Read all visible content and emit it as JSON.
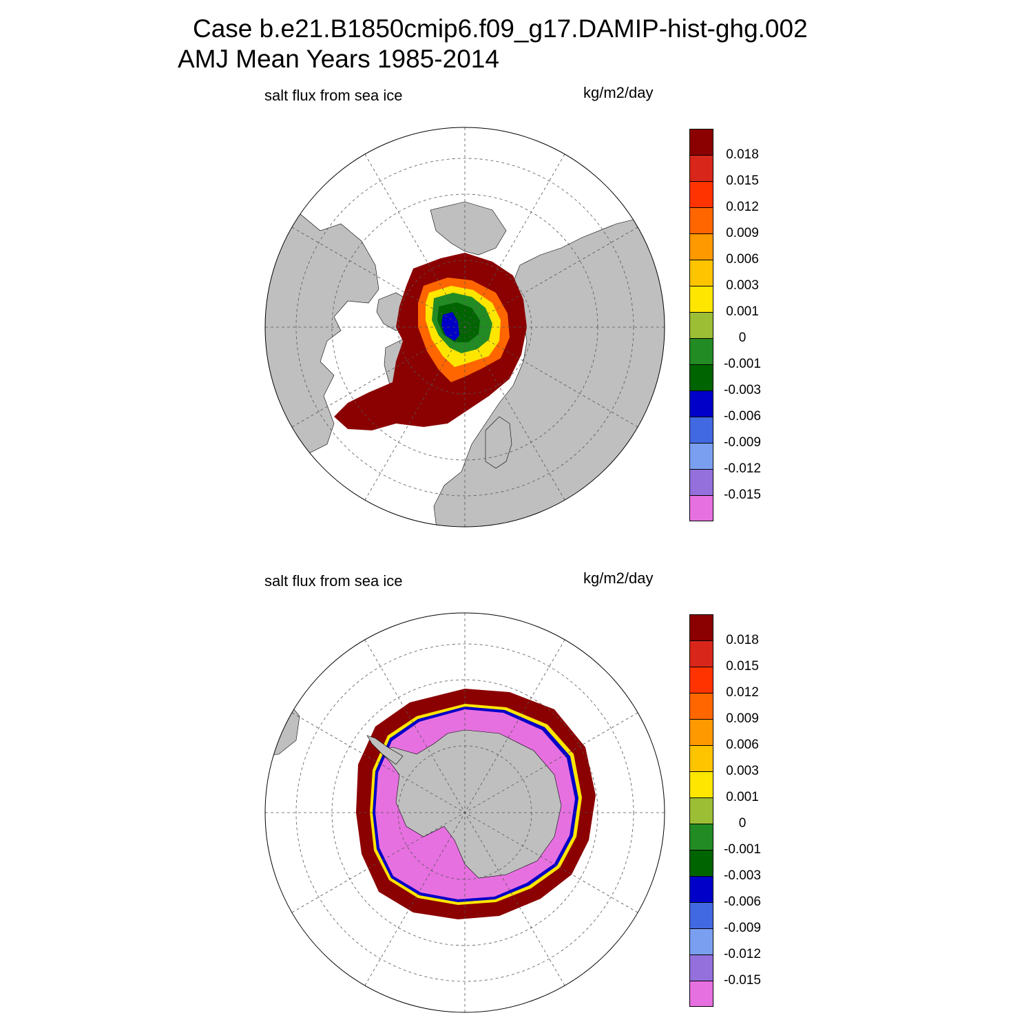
{
  "title": {
    "line1": "Case b.e21.B1850cmip6.f09_g17.DAMIP-hist-ghg.002",
    "line2": "AMJ Mean   Years 1985-2014"
  },
  "panels": [
    {
      "variable": "salt flux from sea ice",
      "units": "kg/m2/day",
      "hemisphere": "north"
    },
    {
      "variable": "salt flux from sea ice",
      "units": "kg/m2/day",
      "hemisphere": "south"
    }
  ],
  "colorbar": {
    "labels": [
      "0.018",
      "0.015",
      "0.012",
      "0.009",
      "0.006",
      "0.003",
      "0.001",
      "0",
      "-0.001",
      "-0.003",
      "-0.006",
      "-0.009",
      "-0.012",
      "-0.015"
    ],
    "colors": [
      "#8b0000",
      "#d8271a",
      "#ff3300",
      "#ff6600",
      "#ff9900",
      "#ffc400",
      "#ffe600",
      "#9cbe35",
      "#238b23",
      "#006400",
      "#0000c8",
      "#4169e1",
      "#7b9ff0",
      "#9370db",
      "#e670e0"
    ]
  },
  "map_colors": {
    "land": "#bfbfbf",
    "ocean": "#ffffff",
    "gridline": "#555555"
  }
}
